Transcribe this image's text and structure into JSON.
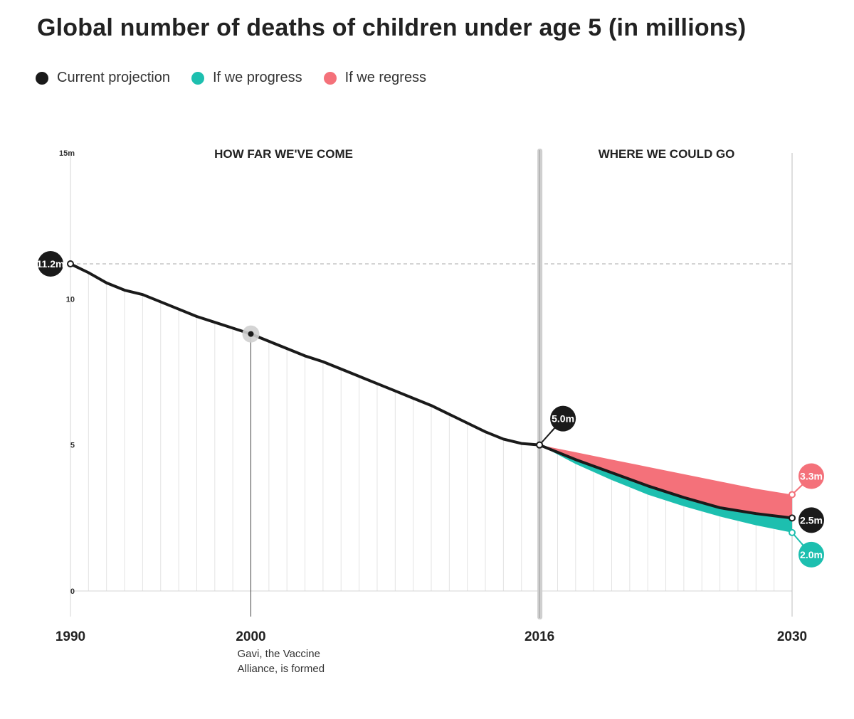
{
  "title": "Global number of deaths of children under age 5 (in millions)",
  "legend": [
    {
      "label": "Current projection",
      "color": "#1a1a1a"
    },
    {
      "label": "If we progress",
      "color": "#1dbfaf"
    },
    {
      "label": "If we regress",
      "color": "#f4717a"
    }
  ],
  "chart_data": {
    "type": "line",
    "title": "Global number of deaths of children under age 5 (in millions)",
    "ylim": [
      0,
      15
    ],
    "xlim": [
      1990,
      2030
    ],
    "y_ticks": [
      {
        "value": 0,
        "label": "0"
      },
      {
        "value": 5,
        "label": "5"
      },
      {
        "value": 10,
        "label": "10"
      },
      {
        "value": 15,
        "label": "15m"
      }
    ],
    "x_ticks": [
      {
        "value": 1990,
        "label": "1990"
      },
      {
        "value": 2000,
        "label": "2000"
      },
      {
        "value": 2016,
        "label": "2016"
      },
      {
        "value": 2030,
        "label": "2030"
      }
    ],
    "section_labels": [
      "HOW FAR WE'VE COME",
      "WHERE WE COULD GO"
    ],
    "reference_line": {
      "value": 11.2
    },
    "series": [
      {
        "name": "Current projection",
        "color": "#1a1a1a",
        "x": [
          1990,
          1991,
          1992,
          1993,
          1994,
          1995,
          1996,
          1997,
          1998,
          1999,
          2000,
          2001,
          2002,
          2003,
          2004,
          2005,
          2006,
          2007,
          2008,
          2009,
          2010,
          2011,
          2012,
          2013,
          2014,
          2015,
          2016,
          2018,
          2020,
          2022,
          2024,
          2026,
          2028,
          2030
        ],
        "values": [
          11.2,
          10.9,
          10.55,
          10.3,
          10.15,
          9.9,
          9.65,
          9.4,
          9.2,
          9.0,
          8.8,
          8.55,
          8.3,
          8.05,
          7.85,
          7.6,
          7.35,
          7.1,
          6.85,
          6.6,
          6.35,
          6.05,
          5.75,
          5.45,
          5.2,
          5.05,
          5.0,
          4.5,
          4.05,
          3.6,
          3.2,
          2.85,
          2.65,
          2.5
        ]
      },
      {
        "name": "If we progress",
        "color": "#1dbfaf",
        "x": [
          2016,
          2018,
          2020,
          2022,
          2024,
          2026,
          2028,
          2030
        ],
        "values": [
          5.0,
          4.35,
          3.8,
          3.3,
          2.9,
          2.55,
          2.25,
          2.0
        ]
      },
      {
        "name": "If we regress",
        "color": "#f4717a",
        "x": [
          2016,
          2018,
          2020,
          2022,
          2024,
          2026,
          2028,
          2030
        ],
        "values": [
          5.0,
          4.75,
          4.5,
          4.25,
          4.0,
          3.75,
          3.5,
          3.3
        ]
      }
    ],
    "callouts": [
      {
        "x": 1990,
        "y": 11.2,
        "label": "11.2m"
      },
      {
        "x": 2016,
        "y": 5.0,
        "label": "5.0m"
      },
      {
        "x": 2030,
        "y": 3.3,
        "label": "3.3m"
      },
      {
        "x": 2030,
        "y": 2.5,
        "label": "2.5m"
      },
      {
        "x": 2030,
        "y": 2.0,
        "label": "2.0m"
      }
    ],
    "annotations": [
      {
        "x": 2000,
        "y": 8.8,
        "text_lines": [
          "Gavi, the Vaccine",
          "Alliance, is formed"
        ]
      }
    ]
  }
}
